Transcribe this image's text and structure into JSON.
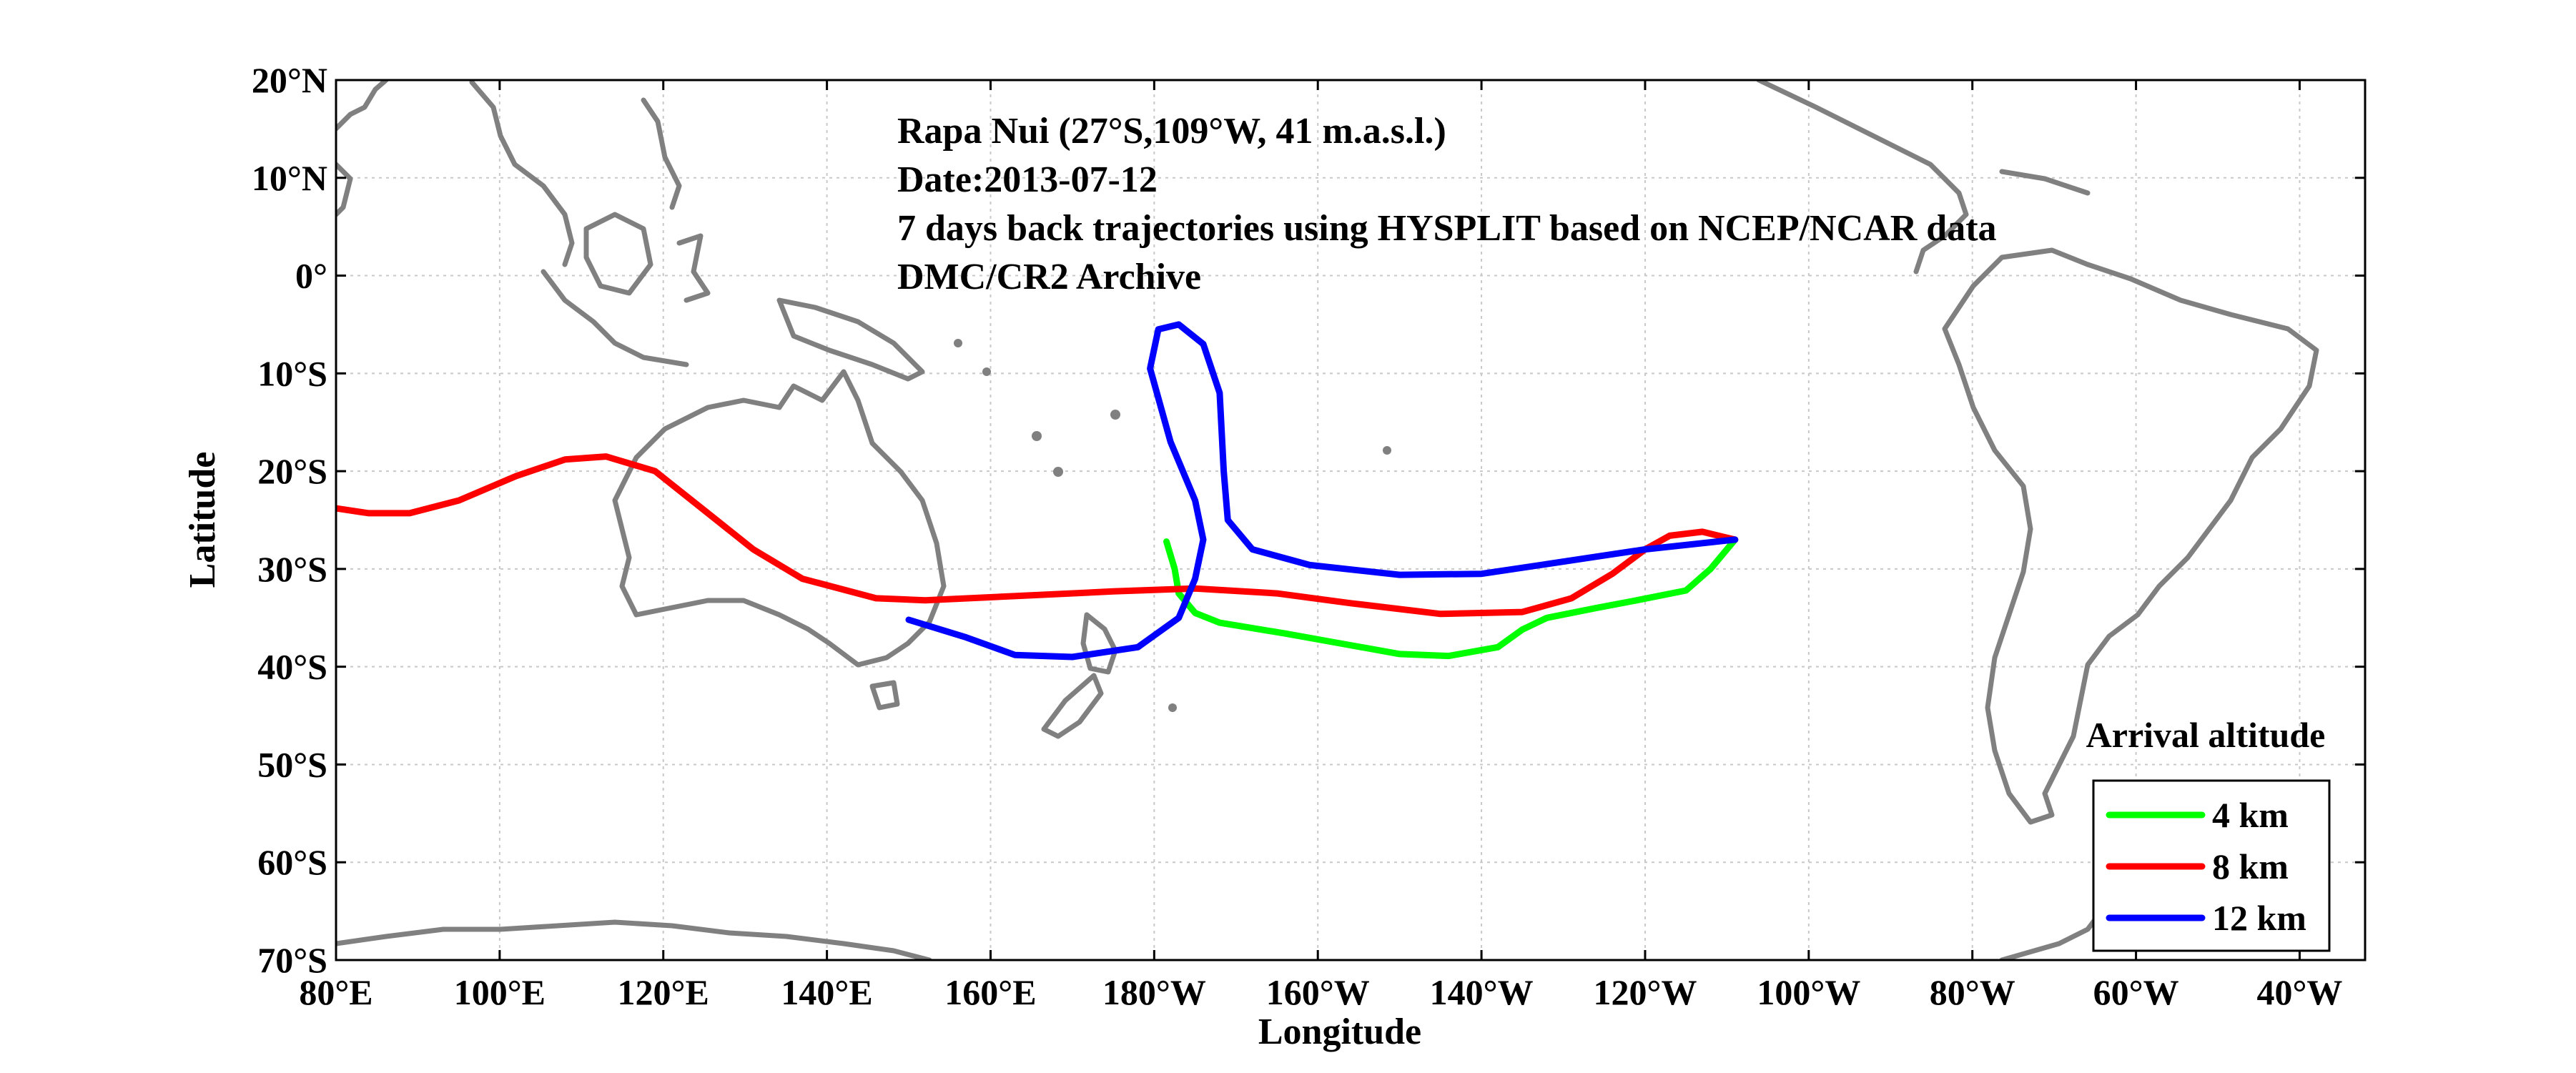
{
  "annotations": [
    "Rapa Nui (27°S,109°W, 41 m.a.s.l.)",
    "Date:2013-07-12",
    "7 days back trajectories using HYSPLIT based on NCEP/NCAR data",
    "DMC/CR2 Archive"
  ],
  "chart_data": {
    "type": "line",
    "xlabel": "Longitude",
    "ylabel": "Latitude",
    "grid": true,
    "legend_placement": "bottom-right",
    "legend_title": "Arrival altitude",
    "x_ticks": [
      {
        "lon": 80,
        "label": "80°E"
      },
      {
        "lon": 100,
        "label": "100°E"
      },
      {
        "lon": 120,
        "label": "120°E"
      },
      {
        "lon": 140,
        "label": "140°E"
      },
      {
        "lon": 160,
        "label": "160°E"
      },
      {
        "lon": 180,
        "label": "180°W"
      },
      {
        "lon": 200,
        "label": "160°W"
      },
      {
        "lon": 220,
        "label": "140°W"
      },
      {
        "lon": 240,
        "label": "120°W"
      },
      {
        "lon": 260,
        "label": "100°W"
      },
      {
        "lon": 280,
        "label": "80°W"
      },
      {
        "lon": 300,
        "label": "60°W"
      },
      {
        "lon": 320,
        "label": "40°W"
      }
    ],
    "y_ticks": [
      {
        "lat": 20,
        "label": "20°N"
      },
      {
        "lat": 10,
        "label": "10°N"
      },
      {
        "lat": 0,
        "label": "0°"
      },
      {
        "lat": -10,
        "label": "10°S"
      },
      {
        "lat": -20,
        "label": "20°S"
      },
      {
        "lat": -30,
        "label": "30°S"
      },
      {
        "lat": -40,
        "label": "40°S"
      },
      {
        "lat": -50,
        "label": "50°S"
      },
      {
        "lat": -60,
        "label": "60°S"
      },
      {
        "lat": -70,
        "label": "70°S"
      }
    ],
    "xlim": [
      80,
      328
    ],
    "ylim": [
      -70,
      20
    ],
    "series": [
      {
        "name": "4 km",
        "color": "#00ff00",
        "points": [
          [
            251,
            -27
          ],
          [
            248,
            -30
          ],
          [
            245,
            -32.2
          ],
          [
            239,
            -33.2
          ],
          [
            234,
            -34
          ],
          [
            228,
            -35
          ],
          [
            225,
            -36.2
          ],
          [
            222,
            -38
          ],
          [
            216,
            -38.9
          ],
          [
            210,
            -38.7
          ],
          [
            202,
            -37.5
          ],
          [
            196,
            -36.6
          ],
          [
            188,
            -35.5
          ],
          [
            185,
            -34.5
          ],
          [
            183,
            -32.5
          ],
          [
            182.5,
            -30
          ],
          [
            181.5,
            -27.2
          ]
        ]
      },
      {
        "name": "8 km",
        "color": "#ff0000",
        "points": [
          [
            251,
            -27
          ],
          [
            247,
            -26.2
          ],
          [
            243,
            -26.6
          ],
          [
            240,
            -28
          ],
          [
            236,
            -30.5
          ],
          [
            231,
            -33
          ],
          [
            225,
            -34.4
          ],
          [
            215,
            -34.6
          ],
          [
            204,
            -33.5
          ],
          [
            195,
            -32.5
          ],
          [
            185,
            -32
          ],
          [
            175,
            -32.3
          ],
          [
            165,
            -32.7
          ],
          [
            152,
            -33.2
          ],
          [
            146,
            -33
          ],
          [
            137,
            -31
          ],
          [
            131,
            -28
          ],
          [
            125,
            -24
          ],
          [
            119,
            -20
          ],
          [
            113,
            -18.5
          ],
          [
            108,
            -18.8
          ],
          [
            102,
            -20.5
          ],
          [
            95,
            -23
          ],
          [
            89,
            -24.3
          ],
          [
            84,
            -24.3
          ],
          [
            80,
            -23.8
          ]
        ]
      },
      {
        "name": "12 km",
        "color": "#0000ff",
        "points": [
          [
            251,
            -27
          ],
          [
            240,
            -28
          ],
          [
            228,
            -29.5
          ],
          [
            220,
            -30.5
          ],
          [
            210,
            -30.6
          ],
          [
            199,
            -29.6
          ],
          [
            192,
            -28
          ],
          [
            189,
            -25
          ],
          [
            188.5,
            -20
          ],
          [
            188,
            -12
          ],
          [
            186,
            -7
          ],
          [
            183,
            -5
          ],
          [
            180.5,
            -5.5
          ],
          [
            179.5,
            -9.5
          ],
          [
            182,
            -17
          ],
          [
            185,
            -23
          ],
          [
            186,
            -27
          ],
          [
            185,
            -31
          ],
          [
            183,
            -35
          ],
          [
            178,
            -38
          ],
          [
            170,
            -39
          ],
          [
            163,
            -38.8
          ],
          [
            157,
            -37
          ],
          [
            150,
            -35.2
          ]
        ]
      }
    ]
  }
}
